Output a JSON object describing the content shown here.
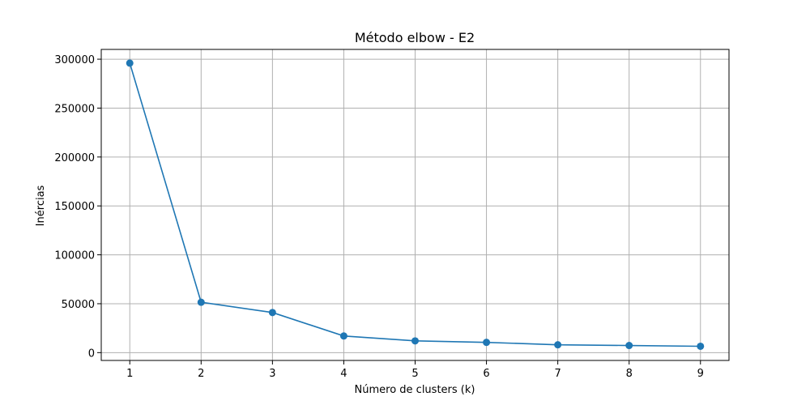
{
  "chart_data": {
    "type": "line",
    "title": "Método elbow - E2",
    "xlabel": "Número de clusters (k)",
    "ylabel": "Inércias",
    "x": [
      1,
      2,
      3,
      4,
      5,
      6,
      7,
      8,
      9
    ],
    "series": [
      {
        "values": [
          296000,
          51500,
          41000,
          17000,
          12000,
          10500,
          8000,
          7300,
          6500
        ],
        "color": "#1f77b4",
        "marker": "circle"
      }
    ],
    "xlim": [
      0.6,
      9.4
    ],
    "ylim": [
      -8000,
      310000
    ],
    "xticks": [
      1,
      2,
      3,
      4,
      5,
      6,
      7,
      8,
      9
    ],
    "xtick_labels": [
      "1",
      "2",
      "3",
      "4",
      "5",
      "6",
      "7",
      "8",
      "9"
    ],
    "yticks": [
      0,
      50000,
      100000,
      150000,
      200000,
      250000,
      300000
    ],
    "ytick_labels": [
      "0",
      "50000",
      "100000",
      "150000",
      "200000",
      "250000",
      "300000"
    ],
    "grid": true,
    "grid_color": "#b0b0b0"
  }
}
